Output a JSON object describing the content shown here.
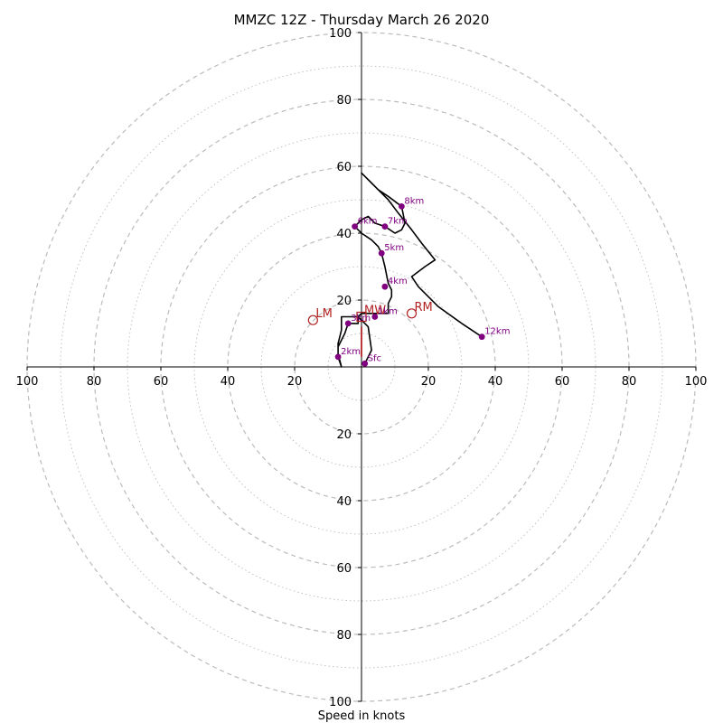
{
  "chart_data": {
    "type": "hodograph",
    "title": "MMZC 12Z - Thursday March 26 2020",
    "xlabel": "Speed in knots",
    "range_max": 100,
    "ring_step_major": 20,
    "ring_step_minor": 10,
    "tick_labels": {
      "left": [
        "100",
        "80",
        "60",
        "40",
        "20"
      ],
      "right": [
        "20",
        "40",
        "60",
        "80",
        "100"
      ],
      "up": [
        "20",
        "40",
        "60",
        "80",
        "100"
      ],
      "down": [
        "20",
        "40",
        "60",
        "80",
        "100"
      ]
    },
    "wind_profile": [
      [
        1,
        1
      ],
      [
        3,
        5
      ],
      [
        2,
        12
      ],
      [
        -1,
        15
      ],
      [
        -3,
        15
      ],
      [
        -6,
        15
      ],
      [
        -6,
        11
      ],
      [
        -7,
        7
      ],
      [
        -7,
        4
      ],
      [
        -6,
        0
      ],
      [
        -7,
        3
      ],
      [
        -7,
        6
      ],
      [
        -5,
        10
      ],
      [
        -4,
        13
      ],
      [
        -2,
        13
      ],
      [
        -1,
        13
      ],
      [
        -1,
        15
      ],
      [
        0,
        16
      ],
      [
        4,
        16
      ],
      [
        8,
        16
      ],
      [
        8,
        19
      ],
      [
        9,
        21
      ],
      [
        9,
        23
      ],
      [
        8,
        25
      ],
      [
        7,
        30
      ],
      [
        6,
        34
      ],
      [
        5,
        36
      ],
      [
        3,
        38
      ],
      [
        0,
        40
      ],
      [
        -2,
        42
      ],
      [
        -1,
        43
      ],
      [
        0,
        44
      ],
      [
        2,
        45
      ],
      [
        4,
        43
      ],
      [
        7,
        42
      ],
      [
        10,
        40
      ],
      [
        12,
        41
      ],
      [
        13,
        43
      ],
      [
        12,
        48
      ],
      [
        8,
        51
      ],
      [
        5,
        53
      ],
      [
        3,
        55
      ],
      [
        1,
        57
      ],
      [
        0,
        58
      ],
      [
        2,
        56
      ],
      [
        4,
        54
      ],
      [
        8,
        50
      ],
      [
        11,
        46
      ],
      [
        15,
        41
      ],
      [
        18,
        37
      ],
      [
        22,
        32
      ],
      [
        19,
        30
      ],
      [
        15,
        27
      ],
      [
        17,
        24
      ],
      [
        20,
        21
      ],
      [
        23,
        18
      ],
      [
        30,
        13
      ],
      [
        36,
        9
      ]
    ],
    "height_markers": [
      {
        "label": "Sfc",
        "u": 1,
        "v": 1
      },
      {
        "label": "1km",
        "u": 4,
        "v": 15
      },
      {
        "label": "2km",
        "u": -7,
        "v": 3
      },
      {
        "label": "3km",
        "u": -4,
        "v": 13
      },
      {
        "label": "4km",
        "u": 7,
        "v": 24
      },
      {
        "label": "5km",
        "u": 6,
        "v": 34
      },
      {
        "label": "6km",
        "u": -2,
        "v": 42
      },
      {
        "label": "7km",
        "u": 7,
        "v": 42
      },
      {
        "label": "8km",
        "u": 12,
        "v": 48
      },
      {
        "label": "12km",
        "u": 36,
        "v": 9
      }
    ],
    "storm_motion": [
      {
        "label": "LM",
        "u": -14.5,
        "v": 14
      },
      {
        "label": "RM",
        "u": 15,
        "v": 16
      },
      {
        "label": "MW",
        "u": 0,
        "v": 15
      }
    ],
    "shear_vector": {
      "from": [
        0,
        12
      ],
      "to": [
        0,
        3
      ]
    },
    "colors": {
      "profile": "#000000",
      "markers": "#800080",
      "storm_motion": "#b22222",
      "rings": "#bbbbbb"
    }
  }
}
